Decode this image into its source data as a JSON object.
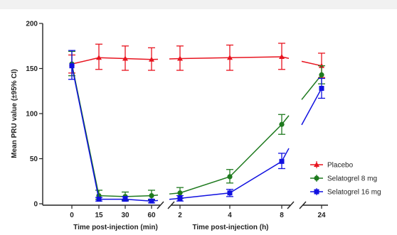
{
  "chart_data": {
    "type": "line",
    "ylabel": "Mean PRU value (±95% CI)",
    "ylim": [
      0,
      200
    ],
    "yticks": [
      "0",
      "50",
      "100",
      "150",
      "200"
    ],
    "panels": [
      {
        "xlabel": "Time post-injection (min)",
        "x": [
          0,
          15,
          30,
          60
        ],
        "xtick_labels": [
          "0",
          "15",
          "30",
          "60"
        ]
      },
      {
        "xlabel": "Time post-injection (h)",
        "x": [
          2,
          4,
          8
        ],
        "xtick_labels": [
          "2",
          "4",
          "8"
        ]
      },
      {
        "xlabel": "",
        "x": [
          24
        ],
        "xtick_labels": [
          "24"
        ]
      }
    ],
    "series": [
      {
        "name": "Placebo",
        "color": "#e8141f",
        "marker": "triangle",
        "points": [
          {
            "panel": 0,
            "x": 0,
            "y": 155,
            "lo": 145,
            "hi": 165
          },
          {
            "panel": 0,
            "x": 15,
            "y": 162,
            "lo": 149,
            "hi": 177
          },
          {
            "panel": 0,
            "x": 30,
            "y": 161,
            "lo": 148,
            "hi": 175
          },
          {
            "panel": 0,
            "x": 60,
            "y": 160,
            "lo": 148,
            "hi": 173
          },
          {
            "panel": 1,
            "x": 2,
            "y": 161,
            "lo": 148,
            "hi": 175
          },
          {
            "panel": 1,
            "x": 4,
            "y": 162,
            "lo": 148,
            "hi": 176
          },
          {
            "panel": 1,
            "x": 8,
            "y": 163,
            "lo": 149,
            "hi": 178
          },
          {
            "panel": 2,
            "x": 24,
            "y": 153,
            "lo": 140,
            "hi": 167
          }
        ]
      },
      {
        "name": "Selatogrel 8 mg",
        "color": "#1e7a1e",
        "marker": "circle",
        "points": [
          {
            "panel": 0,
            "x": 0,
            "y": 155,
            "lo": 142,
            "hi": 169
          },
          {
            "panel": 0,
            "x": 15,
            "y": 9,
            "lo": 5,
            "hi": 15
          },
          {
            "panel": 0,
            "x": 30,
            "y": 8,
            "lo": 4,
            "hi": 13
          },
          {
            "panel": 0,
            "x": 60,
            "y": 9,
            "lo": 4,
            "hi": 15
          },
          {
            "panel": 1,
            "x": 2,
            "y": 12,
            "lo": 6,
            "hi": 18
          },
          {
            "panel": 1,
            "x": 4,
            "y": 30,
            "lo": 23,
            "hi": 38
          },
          {
            "panel": 1,
            "x": 8,
            "y": 88,
            "lo": 77,
            "hi": 99
          },
          {
            "panel": 2,
            "x": 24,
            "y": 143,
            "lo": 133,
            "hi": 153
          }
        ]
      },
      {
        "name": "Selatogrel 16 mg",
        "color": "#1111e0",
        "marker": "square",
        "points": [
          {
            "panel": 0,
            "x": 0,
            "y": 153,
            "lo": 138,
            "hi": 170
          },
          {
            "panel": 0,
            "x": 15,
            "y": 5,
            "lo": 3,
            "hi": 7
          },
          {
            "panel": 0,
            "x": 30,
            "y": 5,
            "lo": 3,
            "hi": 8
          },
          {
            "panel": 0,
            "x": 60,
            "y": 3,
            "lo": 1,
            "hi": 5
          },
          {
            "panel": 1,
            "x": 2,
            "y": 6,
            "lo": 3,
            "hi": 9
          },
          {
            "panel": 1,
            "x": 4,
            "y": 12,
            "lo": 8,
            "hi": 16
          },
          {
            "panel": 1,
            "x": 8,
            "y": 47,
            "lo": 39,
            "hi": 56
          },
          {
            "panel": 2,
            "x": 24,
            "y": 128,
            "lo": 117,
            "hi": 139
          }
        ]
      }
    ],
    "legend_position": "bottom-right",
    "grid": false
  }
}
